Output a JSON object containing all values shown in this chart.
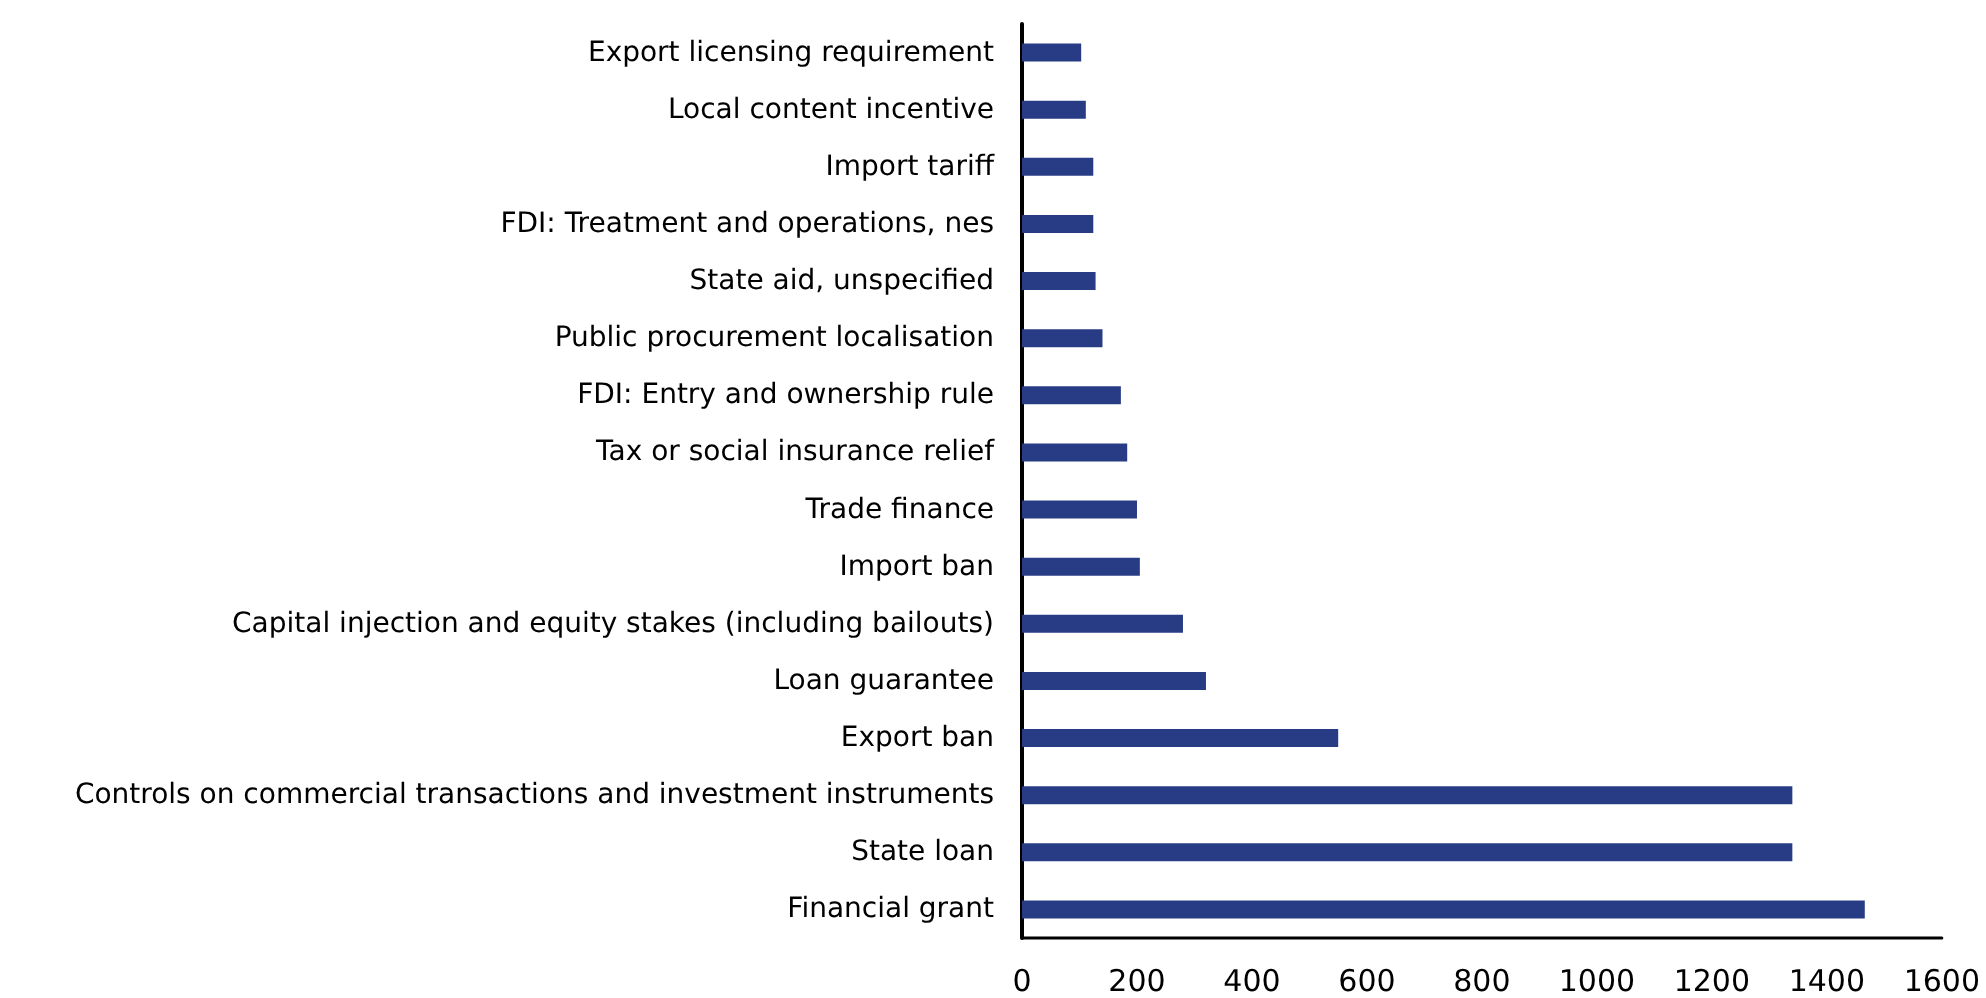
{
  "chart_data": {
    "type": "bar",
    "orientation": "horizontal",
    "categories": [
      "Export licensing requirement",
      "Local content incentive",
      "Import tariff",
      "FDI: Treatment and operations, nes",
      "State aid, unspecified",
      "Public procurement localisation",
      "FDI: Entry and ownership rule",
      "Tax or social insurance relief",
      "Trade finance",
      "Import ban",
      "Capital injection and equity stakes (including bailouts)",
      "Loan guarantee",
      "Export ban",
      "Controls on commercial transactions and investment instruments",
      "State loan",
      "Financial grant"
    ],
    "values": [
      103,
      111,
      124,
      124,
      128,
      140,
      172,
      183,
      200,
      205,
      280,
      320,
      550,
      1340,
      1340,
      1466
    ],
    "color": "#283c85",
    "xlim": [
      0,
      1600
    ],
    "xticks": [
      0,
      200,
      400,
      600,
      800,
      1000,
      1200,
      1400,
      1600
    ]
  }
}
